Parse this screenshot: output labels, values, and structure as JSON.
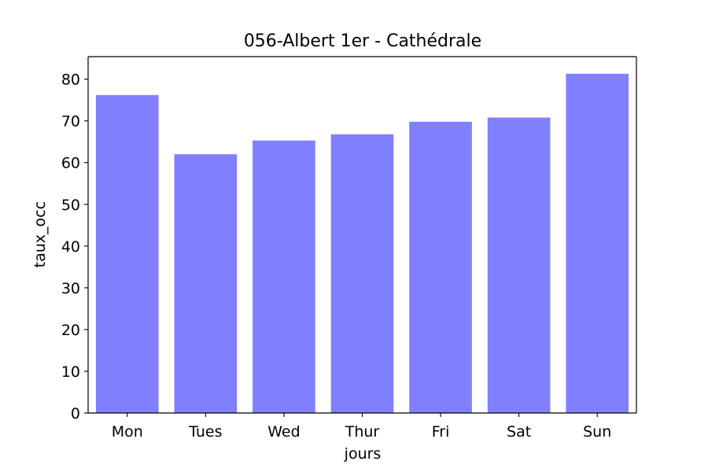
{
  "chart_data": {
    "type": "bar",
    "title": "056-Albert 1er - Cathédrale",
    "xlabel": "jours",
    "ylabel": "taux_occ",
    "categories": [
      "Mon",
      "Tues",
      "Wed",
      "Thur",
      "Fri",
      "Sat",
      "Sun"
    ],
    "values": [
      76.2,
      62.0,
      65.3,
      66.8,
      69.8,
      70.8,
      81.3
    ],
    "ylim": [
      0,
      85.4
    ],
    "yticks": [
      0,
      10,
      20,
      30,
      40,
      50,
      60,
      70,
      80
    ],
    "bar_color": "#8080ff",
    "grid": false,
    "legend": "none"
  }
}
